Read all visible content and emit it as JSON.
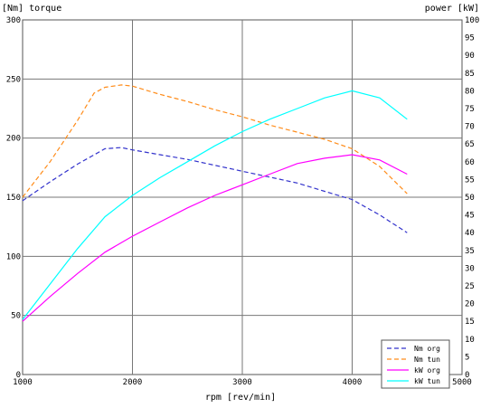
{
  "chart_data": {
    "type": "line",
    "left_axis_title": "[Nm] torque",
    "right_axis_title": "power [kW]",
    "xlabel": "rpm [rev/min]",
    "xlim": [
      1000,
      5000
    ],
    "ylim_left": [
      0,
      300
    ],
    "ylim_right": [
      0,
      100
    ],
    "x_ticks": [
      "1000",
      "2000",
      "3000",
      "4000",
      "5000"
    ],
    "y_left_ticks": [
      "0",
      "50",
      "100",
      "150",
      "200",
      "250",
      "300"
    ],
    "y_right_ticks": [
      "0",
      "5",
      "10",
      "15",
      "20",
      "25",
      "30",
      "35",
      "40",
      "45",
      "50",
      "55",
      "60",
      "65",
      "70",
      "75",
      "80",
      "85",
      "90",
      "95",
      "100"
    ],
    "grid": true,
    "legend_position": "bottom-right",
    "series": [
      {
        "name": "Nm org",
        "axis": "left",
        "color": "#3333cc",
        "dash": "dashed",
        "x": [
          1000,
          1250,
          1500,
          1750,
          1900,
          2000,
          2250,
          2500,
          2750,
          3000,
          3250,
          3500,
          3750,
          4000,
          4250,
          4500
        ],
        "y": [
          147,
          163,
          178,
          191,
          192,
          190,
          186,
          182,
          177,
          172,
          167,
          162,
          155,
          148,
          135,
          120
        ]
      },
      {
        "name": "Nm tun",
        "axis": "left",
        "color": "#ff8c1a",
        "dash": "dashed",
        "x": [
          1000,
          1250,
          1500,
          1650,
          1750,
          1900,
          2000,
          2250,
          2500,
          2750,
          3000,
          3250,
          3500,
          3750,
          4000,
          4250,
          4500
        ],
        "y": [
          150,
          180,
          215,
          238,
          243,
          245,
          244,
          237,
          231,
          224,
          218,
          211,
          205,
          199,
          191,
          176,
          153
        ]
      },
      {
        "name": "kW org",
        "axis": "right",
        "color": "#ff00ff",
        "dash": "solid",
        "x": [
          1000,
          1250,
          1500,
          1750,
          2000,
          2250,
          2500,
          2750,
          3000,
          3250,
          3500,
          3750,
          4000,
          4250,
          4500
        ],
        "y": [
          15,
          22,
          28.5,
          34.5,
          39,
          43,
          47,
          50.5,
          53.5,
          56.5,
          59.5,
          61,
          62,
          60.5,
          56.5
        ]
      },
      {
        "name": "kW tun",
        "axis": "right",
        "color": "#00ffff",
        "dash": "solid",
        "x": [
          1000,
          1250,
          1500,
          1750,
          2000,
          2250,
          2500,
          2750,
          3000,
          3250,
          3500,
          3750,
          4000,
          4250,
          4500
        ],
        "y": [
          15.5,
          25.5,
          35.5,
          44.5,
          50.5,
          55.5,
          60,
          64.5,
          68.5,
          72,
          75,
          78,
          80,
          78,
          72
        ]
      }
    ]
  }
}
